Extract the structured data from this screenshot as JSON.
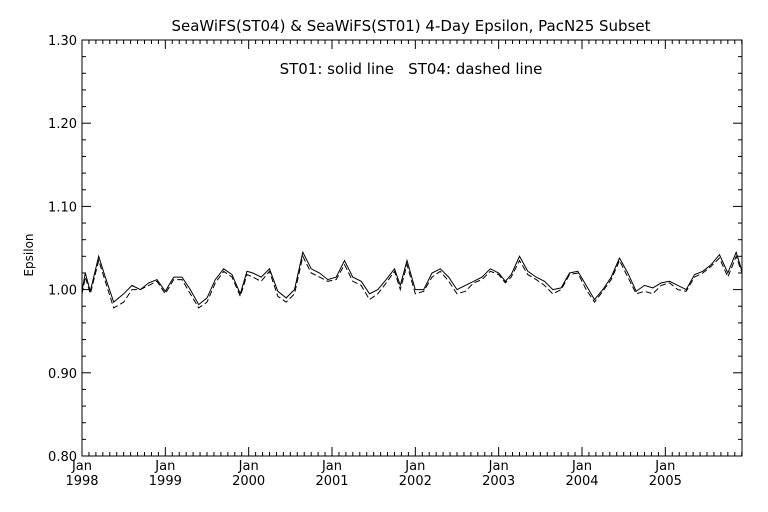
{
  "chart_data": {
    "type": "line",
    "title": "SeaWiFS(ST04) & SeaWiFS(ST01) 4-Day Epsilon, PacN25 Subset",
    "annotation": "ST01: solid line   ST04: dashed line",
    "ylabel": "Epsilon",
    "xlabel": "",
    "xlim": [
      1998.0,
      2005.92
    ],
    "ylim": [
      0.8,
      1.3
    ],
    "y_ticks": [
      "0.80",
      "0.90",
      "1.00",
      "1.10",
      "1.20",
      "1.30"
    ],
    "x_ticks": [
      {
        "month": "Jan",
        "year": "1998",
        "x": 1998
      },
      {
        "month": "Jan",
        "year": "1999",
        "x": 1999
      },
      {
        "month": "Jan",
        "year": "2000",
        "x": 2000
      },
      {
        "month": "Jan",
        "year": "2001",
        "x": 2001
      },
      {
        "month": "Jan",
        "year": "2002",
        "x": 2002
      },
      {
        "month": "Jan",
        "year": "2003",
        "x": 2003
      },
      {
        "month": "Jan",
        "year": "2004",
        "x": 2004
      },
      {
        "month": "Jan",
        "year": "2005",
        "x": 2005
      }
    ],
    "grid": false,
    "series": [
      {
        "name": "ST01",
        "style": "solid",
        "x": [
          1998.0,
          1998.04,
          1998.1,
          1998.2,
          1998.28,
          1998.38,
          1998.5,
          1998.6,
          1998.7,
          1998.8,
          1998.9,
          1999.0,
          1999.1,
          1999.2,
          1999.3,
          1999.4,
          1999.5,
          1999.6,
          1999.7,
          1999.8,
          1999.9,
          1999.98,
          2000.05,
          2000.15,
          2000.25,
          2000.35,
          2000.45,
          2000.55,
          2000.65,
          2000.75,
          2000.85,
          2000.95,
          2001.05,
          2001.15,
          2001.25,
          2001.35,
          2001.45,
          2001.55,
          2001.65,
          2001.75,
          2001.82,
          2001.9,
          2002.0,
          2002.1,
          2002.2,
          2002.3,
          2002.4,
          2002.5,
          2002.6,
          2002.7,
          2002.8,
          2002.9,
          2003.0,
          2003.08,
          2003.15,
          2003.25,
          2003.35,
          2003.45,
          2003.55,
          2003.65,
          2003.75,
          2003.85,
          2003.95,
          2004.05,
          2004.15,
          2004.25,
          2004.35,
          2004.45,
          2004.55,
          2004.65,
          2004.75,
          2004.85,
          2004.95,
          2005.05,
          2005.15,
          2005.25,
          2005.35,
          2005.45,
          2005.55,
          2005.65,
          2005.75,
          2005.85,
          2005.92
        ],
        "y": [
          0.998,
          1.02,
          0.998,
          1.04,
          1.015,
          0.985,
          0.995,
          1.005,
          1.0,
          1.008,
          1.012,
          0.998,
          1.015,
          1.015,
          1.0,
          0.982,
          0.99,
          1.012,
          1.025,
          1.018,
          0.995,
          1.022,
          1.02,
          1.015,
          1.025,
          0.998,
          0.99,
          1.0,
          1.045,
          1.025,
          1.02,
          1.012,
          1.015,
          1.035,
          1.015,
          1.01,
          0.995,
          1.0,
          1.012,
          1.025,
          1.005,
          1.035,
          1.0,
          1.0,
          1.02,
          1.025,
          1.015,
          1.0,
          1.005,
          1.01,
          1.015,
          1.025,
          1.02,
          1.01,
          1.018,
          1.04,
          1.022,
          1.015,
          1.01,
          1.0,
          1.002,
          1.02,
          1.022,
          1.005,
          0.988,
          1.0,
          1.015,
          1.038,
          1.02,
          0.998,
          1.005,
          1.002,
          1.008,
          1.01,
          1.005,
          1.0,
          1.018,
          1.022,
          1.03,
          1.042,
          1.02,
          1.045,
          1.022
        ]
      },
      {
        "name": "ST04",
        "style": "dashed",
        "x": [
          1998.0,
          1998.04,
          1998.1,
          1998.2,
          1998.28,
          1998.38,
          1998.5,
          1998.6,
          1998.7,
          1998.8,
          1998.9,
          1999.0,
          1999.1,
          1999.2,
          1999.3,
          1999.4,
          1999.5,
          1999.6,
          1999.7,
          1999.8,
          1999.9,
          1999.98,
          2000.05,
          2000.15,
          2000.25,
          2000.35,
          2000.45,
          2000.55,
          2000.65,
          2000.75,
          2000.85,
          2000.95,
          2001.05,
          2001.15,
          2001.25,
          2001.35,
          2001.45,
          2001.55,
          2001.65,
          2001.75,
          2001.82,
          2001.9,
          2002.0,
          2002.1,
          2002.2,
          2002.3,
          2002.4,
          2002.5,
          2002.6,
          2002.7,
          2002.8,
          2002.9,
          2003.0,
          2003.08,
          2003.15,
          2003.25,
          2003.35,
          2003.45,
          2003.55,
          2003.65,
          2003.75,
          2003.85,
          2003.95,
          2004.05,
          2004.15,
          2004.25,
          2004.35,
          2004.45,
          2004.55,
          2004.65,
          2004.75,
          2004.85,
          2004.95,
          2005.05,
          2005.15,
          2005.25,
          2005.35,
          2005.45,
          2005.55,
          2005.65,
          2005.75,
          2005.85,
          2005.92
        ],
        "y": [
          0.995,
          1.015,
          0.995,
          1.035,
          1.01,
          0.978,
          0.985,
          1.0,
          1.0,
          1.005,
          1.01,
          0.995,
          1.012,
          1.012,
          0.995,
          0.978,
          0.985,
          1.008,
          1.022,
          1.015,
          0.992,
          1.018,
          1.015,
          1.01,
          1.022,
          0.992,
          0.985,
          0.995,
          1.04,
          1.02,
          1.015,
          1.01,
          1.012,
          1.03,
          1.01,
          1.005,
          0.988,
          0.995,
          1.008,
          1.022,
          1.0,
          1.03,
          0.995,
          0.998,
          1.015,
          1.022,
          1.01,
          0.995,
          0.998,
          1.008,
          1.012,
          1.022,
          1.018,
          1.008,
          1.015,
          1.035,
          1.018,
          1.012,
          1.005,
          0.995,
          1.0,
          1.018,
          1.02,
          1.0,
          0.985,
          0.998,
          1.012,
          1.035,
          1.015,
          0.995,
          0.998,
          0.995,
          1.005,
          1.008,
          1.0,
          0.998,
          1.015,
          1.02,
          1.028,
          1.038,
          1.015,
          1.04,
          1.02
        ]
      }
    ]
  }
}
